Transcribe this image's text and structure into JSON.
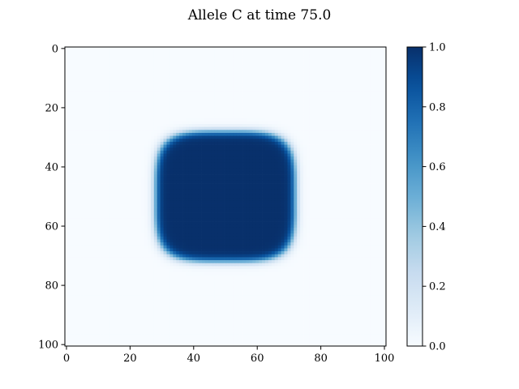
{
  "chart_data": {
    "type": "heatmap",
    "title": "Allele C at time 75.0",
    "xlabel": "",
    "ylabel": "",
    "colormap": "Blues",
    "grid_shape": [
      101,
      101
    ],
    "xlim": [
      -0.5,
      100.5
    ],
    "ylim": [
      100.5,
      -0.5
    ],
    "x_ticks": [
      0,
      20,
      40,
      60,
      80,
      100
    ],
    "x_tick_labels": [
      "0",
      "20",
      "40",
      "60",
      "80",
      "100"
    ],
    "y_ticks": [
      0,
      20,
      40,
      60,
      80,
      100
    ],
    "y_tick_labels": [
      "0",
      "20",
      "40",
      "60",
      "80",
      "100"
    ],
    "region": {
      "description": "rounded-square blob of value ~1.0 on background ~0.0",
      "center_x": 50,
      "center_y": 50,
      "half_width": 22,
      "half_height": 22,
      "shape_exponent": 4,
      "edge_width": 1.6,
      "inside_value": 1.0,
      "outside_value": 0.0
    },
    "colorbar": {
      "min": 0.0,
      "max": 1.0,
      "ticks": [
        0.0,
        0.2,
        0.4,
        0.6,
        0.8,
        1.0
      ],
      "tick_labels": [
        "0.0",
        "0.2",
        "0.4",
        "0.6",
        "0.8",
        "1.0"
      ]
    },
    "colors": {
      "low": "#f7fbff",
      "high": "#08306b"
    }
  }
}
